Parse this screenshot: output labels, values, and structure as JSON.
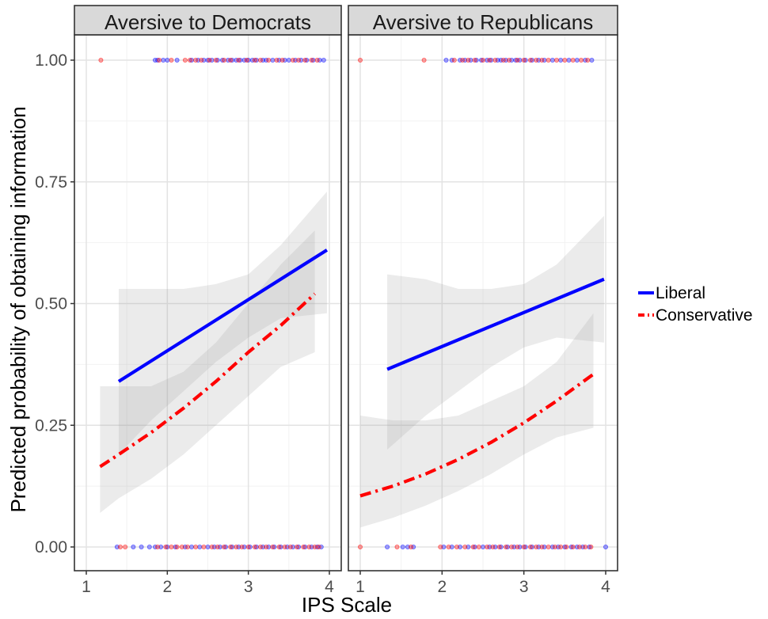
{
  "chart_data": {
    "type": "line",
    "xlabel": "IPS Scale",
    "ylabel": "Predicted probability of obtaining information",
    "xlim": [
      1,
      4
    ],
    "ylim": [
      0,
      1
    ],
    "x_ticks": [
      1,
      2,
      3,
      4
    ],
    "x_tick_labels": [
      "1",
      "2",
      "3",
      "4"
    ],
    "y_ticks": [
      0,
      0.25,
      0.5,
      0.75,
      1
    ],
    "y_tick_labels": [
      "0.00",
      "0.25",
      "0.50",
      "0.75",
      "1.00"
    ],
    "grid": true,
    "legend": {
      "position": "right",
      "entries": [
        {
          "label": "Liberal",
          "color": "#0000ff",
          "linestyle": "solid"
        },
        {
          "label": "Conservative",
          "color": "#ff0000",
          "linestyle": "dashdot"
        }
      ]
    },
    "panels": [
      {
        "title": "Aversive to Democrats",
        "series": [
          {
            "name": "Liberal",
            "color": "#0000ff",
            "x": [
              1.4,
              3.97
            ],
            "y": [
              0.34,
              0.61
            ],
            "ci_x": [
              1.4,
              1.8,
              2.2,
              2.6,
              3.0,
              3.4,
              3.97
            ],
            "ci_lower": [
              0.19,
              0.26,
              0.32,
              0.38,
              0.43,
              0.47,
              0.48
            ],
            "ci_upper": [
              0.53,
              0.53,
              0.53,
              0.54,
              0.56,
              0.62,
              0.73
            ]
          },
          {
            "name": "Conservative",
            "color": "#ff0000",
            "x": [
              1.17,
              1.4,
              1.8,
              2.2,
              2.6,
              3.0,
              3.4,
              3.82
            ],
            "y": [
              0.165,
              0.19,
              0.235,
              0.285,
              0.34,
              0.4,
              0.455,
              0.52
            ],
            "ci_x": [
              1.17,
              1.4,
              1.8,
              2.2,
              2.6,
              3.0,
              3.4,
              3.82
            ],
            "ci_lower": [
              0.07,
              0.1,
              0.14,
              0.19,
              0.25,
              0.31,
              0.37,
              0.4
            ],
            "ci_upper": [
              0.33,
              0.33,
              0.33,
              0.36,
              0.42,
              0.5,
              0.58,
              0.65
            ]
          }
        ],
        "points_liberal_y1": [
          1.85,
          1.88,
          1.95,
          2.0,
          2.12,
          2.3,
          2.38,
          2.45,
          2.5,
          2.55,
          2.62,
          2.68,
          2.75,
          2.8,
          2.85,
          2.9,
          2.95,
          3.0,
          3.05,
          3.1,
          3.18,
          3.22,
          3.3,
          3.38,
          3.45,
          3.5,
          3.58,
          3.65,
          3.72,
          3.8,
          3.88,
          3.93
        ],
        "points_conservative_y1": [
          1.18,
          1.9,
          2.05,
          2.22,
          2.28,
          2.35,
          2.42,
          2.52,
          2.6,
          2.7,
          2.78,
          2.88,
          2.98,
          3.08,
          3.15,
          3.25,
          3.35,
          3.42,
          3.55,
          3.62,
          3.7,
          3.78,
          3.85
        ],
        "points_liberal_y0": [
          1.38,
          1.58,
          1.68,
          1.78,
          1.85,
          1.92,
          2.0,
          2.1,
          2.22,
          2.3,
          2.4,
          2.5,
          2.58,
          2.65,
          2.72,
          2.8,
          2.88,
          2.95,
          3.02,
          3.1,
          3.18,
          3.25,
          3.32,
          3.4,
          3.48,
          3.55,
          3.62,
          3.7,
          3.78,
          3.85,
          3.9
        ],
        "points_conservative_y0": [
          1.42,
          1.48,
          1.88,
          1.98,
          2.05,
          2.12,
          2.18,
          2.25,
          2.35,
          2.45,
          2.55,
          2.62,
          2.7,
          2.78,
          2.85,
          2.92,
          3.0,
          3.08,
          3.15,
          3.22,
          3.3,
          3.38,
          3.45,
          3.52,
          3.6,
          3.68,
          3.75,
          3.82,
          3.87
        ]
      },
      {
        "title": "Aversive to Republicans",
        "series": [
          {
            "name": "Liberal",
            "color": "#0000ff",
            "x": [
              1.33,
              3.98
            ],
            "y": [
              0.365,
              0.55
            ],
            "ci_x": [
              1.33,
              1.8,
              2.2,
              2.6,
              3.0,
              3.4,
              3.98
            ],
            "ci_lower": [
              0.2,
              0.27,
              0.32,
              0.37,
              0.41,
              0.43,
              0.42
            ],
            "ci_upper": [
              0.56,
              0.55,
              0.53,
              0.53,
              0.54,
              0.58,
              0.68
            ]
          },
          {
            "name": "Conservative",
            "color": "#ff0000",
            "x": [
              1.0,
              1.4,
              1.8,
              2.2,
              2.6,
              3.0,
              3.4,
              3.85
            ],
            "y": [
              0.105,
              0.125,
              0.15,
              0.18,
              0.215,
              0.255,
              0.3,
              0.355
            ],
            "ci_x": [
              1.0,
              1.4,
              1.8,
              2.2,
              2.6,
              3.0,
              3.4,
              3.85
            ],
            "ci_lower": [
              0.04,
              0.06,
              0.085,
              0.115,
              0.15,
              0.19,
              0.225,
              0.245
            ],
            "ci_upper": [
              0.27,
              0.26,
              0.26,
              0.27,
              0.3,
              0.33,
              0.38,
              0.48
            ]
          }
        ],
        "points_liberal_y1": [
          2.05,
          2.12,
          2.22,
          2.28,
          2.35,
          2.42,
          2.48,
          2.55,
          2.6,
          2.68,
          2.72,
          2.78,
          2.85,
          2.9,
          2.95,
          3.02,
          3.1,
          3.18,
          3.25,
          3.35,
          3.45,
          3.55,
          3.65,
          3.75,
          3.83
        ],
        "points_conservative_y1": [
          1.0,
          1.78,
          2.15,
          2.25,
          2.32,
          2.4,
          2.5,
          2.58,
          2.65,
          2.75,
          2.82,
          2.92,
          3.0,
          3.08,
          3.15,
          3.22,
          3.3,
          3.4,
          3.5,
          3.6,
          3.7,
          3.78
        ],
        "points_liberal_y0": [
          1.33,
          1.52,
          1.58,
          1.65,
          2.02,
          2.12,
          2.22,
          2.32,
          2.4,
          2.5,
          2.58,
          2.65,
          2.72,
          2.8,
          2.88,
          2.95,
          3.02,
          3.1,
          3.18,
          3.25,
          3.35,
          3.42,
          3.5,
          3.58,
          3.65,
          3.72,
          3.8,
          4.0
        ],
        "points_conservative_y0": [
          1.0,
          1.45,
          1.62,
          1.98,
          2.08,
          2.18,
          2.28,
          2.38,
          2.45,
          2.55,
          2.62,
          2.7,
          2.78,
          2.85,
          2.92,
          3.0,
          3.08,
          3.15,
          3.22,
          3.3,
          3.38,
          3.45,
          3.52,
          3.6,
          3.68,
          3.75,
          3.82
        ]
      }
    ]
  }
}
